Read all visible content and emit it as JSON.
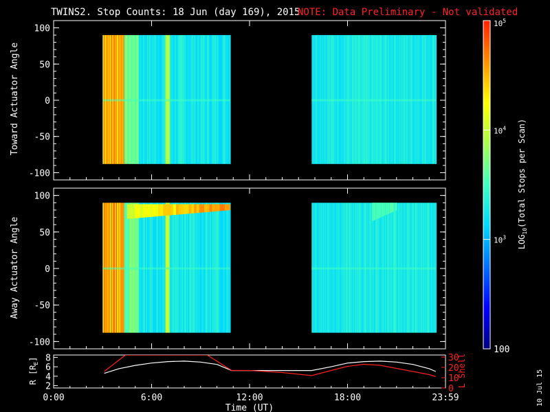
{
  "title": {
    "main": "TWINS2. Stop Counts: 18 Jun (day 169), 2015",
    "note": "NOTE: Data Preliminary - Not validated"
  },
  "footer_date": "10 Jul 15",
  "colorbar": {
    "label": "LOG10(Total Stops per Scan)",
    "label_prefix": "LOG",
    "label_sub": "10",
    "label_suffix": "(Total Stops per Scan)",
    "tick_labels": [
      "10^5",
      "10^4",
      "10^3",
      "100"
    ],
    "tick_label_main": [
      "10",
      "10",
      "10",
      "100"
    ],
    "tick_label_exp": [
      "5",
      "4",
      "3",
      ""
    ],
    "min": 100,
    "max": 100000,
    "scale": "log",
    "colors": [
      "#00007f",
      "#0000ff",
      "#0070ff",
      "#00d8ff",
      "#40ffc0",
      "#a8ff50",
      "#ffff00",
      "#ff9000",
      "#ff2000"
    ]
  },
  "chart_data": [
    {
      "type": "heatmap",
      "panel": "toward",
      "ylabel": "Toward Actuator Angle",
      "xlim": [
        0,
        24
      ],
      "ylim": [
        -110,
        110
      ],
      "y_ticks": [
        -100,
        -50,
        0,
        50,
        100
      ],
      "data_y_range": [
        -88,
        90
      ],
      "data_time_segments": [
        [
          3.0,
          10.8
        ],
        [
          15.8,
          23.4
        ]
      ],
      "color_value_by_time": [
        {
          "t": 3.0,
          "level": 0.85
        },
        {
          "t": 3.6,
          "level": 0.9
        },
        {
          "t": 4.2,
          "level": 0.9
        },
        {
          "t": 5.0,
          "level": 0.5
        },
        {
          "t": 6.2,
          "level": 0.45
        },
        {
          "t": 7.0,
          "level": 0.62
        },
        {
          "t": 8.0,
          "level": 0.42
        },
        {
          "t": 9.5,
          "level": 0.42
        },
        {
          "t": 10.8,
          "level": 0.45
        },
        {
          "t": 15.8,
          "level": 0.42
        },
        {
          "t": 19.0,
          "level": 0.44
        },
        {
          "t": 23.4,
          "level": 0.44
        }
      ]
    },
    {
      "type": "heatmap",
      "panel": "away",
      "ylabel": "Away Actuator Angle",
      "xlim": [
        0,
        24
      ],
      "ylim": [
        -110,
        110
      ],
      "y_ticks": [
        -100,
        -50,
        0,
        50,
        100
      ],
      "data_y_range": [
        -88,
        90
      ],
      "data_time_segments": [
        [
          3.0,
          10.8
        ],
        [
          15.8,
          23.4
        ]
      ],
      "features": [
        {
          "name": "high-angle enhancement",
          "t_start": 4.5,
          "t_end": 10.8,
          "angle_start": 68,
          "angle_end": 88,
          "level": 0.7
        },
        {
          "name": "high-angle patch",
          "t_start": 19.5,
          "t_end": 21.0,
          "angle_start": 65,
          "angle_end": 90,
          "level": 0.5
        }
      ]
    },
    {
      "type": "line",
      "panel": "ephemeris",
      "xlabel": "Time (UT)",
      "x_tick_labels": [
        "0:00",
        "6:00",
        "12:00",
        "18:00",
        "23:59"
      ],
      "x_ticks": [
        0,
        6,
        12,
        18,
        24
      ],
      "xlim": [
        0,
        24
      ],
      "y_left": {
        "label": "R [RE]",
        "label_main": "R [R",
        "label_sub": "E",
        "label_close": "]",
        "ticks": [
          2,
          4,
          6,
          8
        ],
        "range": [
          1.5,
          8.5
        ]
      },
      "y_right": {
        "label": "L Shell",
        "ticks": [
          0,
          10,
          20,
          30
        ],
        "range": [
          0,
          32
        ]
      },
      "series": [
        {
          "name": "R [RE]",
          "axis": "left",
          "color": "#ffffff",
          "x": [
            3.1,
            4.0,
            5.0,
            6.0,
            7.0,
            8.0,
            9.0,
            10.0,
            10.9,
            12.0,
            14.0,
            15.8,
            17.0,
            18.0,
            19.0,
            20.0,
            21.0,
            22.0,
            23.0,
            23.4
          ],
          "y": [
            4.6,
            5.6,
            6.3,
            6.8,
            7.1,
            7.2,
            7.0,
            6.5,
            5.2,
            5.2,
            5.2,
            5.2,
            6.0,
            6.8,
            7.1,
            7.2,
            7.0,
            6.5,
            5.6,
            5.0
          ]
        },
        {
          "name": "L Shell",
          "axis": "right",
          "color": "#ff2020",
          "x": [
            3.1,
            4.4,
            9.4,
            10.9,
            12.0,
            14.0,
            15.8,
            17.0,
            18.0,
            19.0,
            20.0,
            21.0,
            22.0,
            23.0,
            23.4
          ],
          "y": [
            16,
            32,
            32,
            17,
            17,
            15,
            12,
            17,
            21,
            23,
            22,
            19,
            16,
            13,
            11
          ]
        }
      ]
    }
  ]
}
